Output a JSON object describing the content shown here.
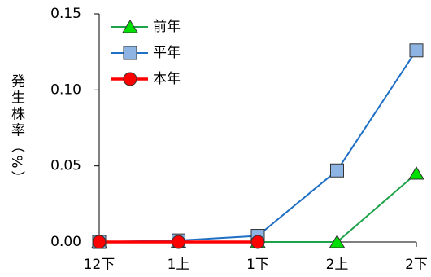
{
  "chart_data": {
    "type": "line",
    "y_label": "発生株率（%）",
    "categories": [
      "12下",
      "1上",
      "1下",
      "2上",
      "2下"
    ],
    "series": [
      {
        "name": "前年",
        "color": "#1fa34a",
        "marker": "triangle",
        "marker_fill": "#00e000",
        "values": [
          0,
          0,
          0,
          0,
          0.045
        ]
      },
      {
        "name": "平年",
        "color": "#1f6fc5",
        "marker": "square",
        "marker_fill": "#8eb4e3",
        "values": [
          0,
          0.001,
          0.004,
          0.047,
          0.126
        ]
      },
      {
        "name": "本年",
        "color": "#ff0000",
        "marker": "circle",
        "marker_fill": "#ff0000",
        "values": [
          0,
          0,
          0,
          null,
          null
        ]
      }
    ],
    "ylim": [
      0,
      0.15
    ],
    "yticks": [
      {
        "value": 0,
        "label": "0.00"
      },
      {
        "value": 0.05,
        "label": "0.05"
      },
      {
        "value": 0.1,
        "label": "0.10"
      },
      {
        "value": 0.15,
        "label": "0.15"
      }
    ],
    "grid": false,
    "legend": "top-left"
  }
}
